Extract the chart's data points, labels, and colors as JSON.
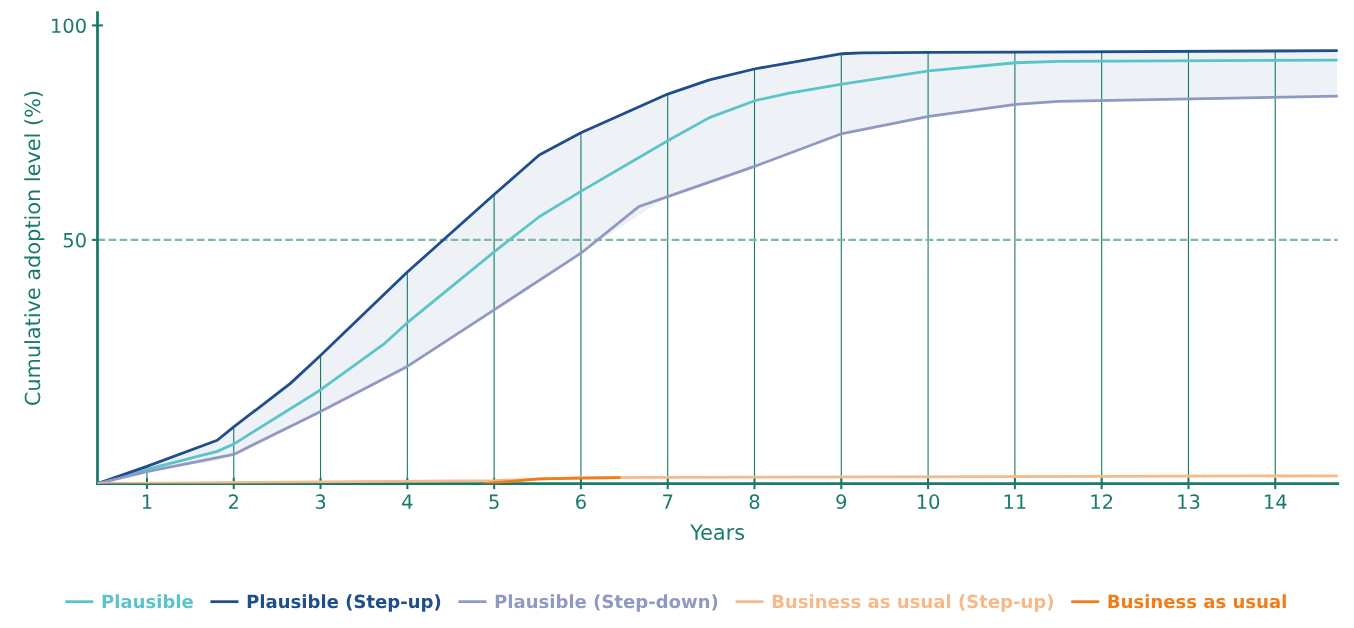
{
  "chart_data": {
    "type": "line",
    "xlabel": "Years",
    "ylabel": "Cumulative adoption level (%)",
    "xlim": [
      0.43,
      14.72
    ],
    "ylim": [
      -6.8,
      103
    ],
    "xticks": [
      1,
      2,
      3,
      4,
      5,
      6,
      7,
      8,
      9,
      10,
      11,
      12,
      13,
      14
    ],
    "yticks": [
      50,
      100
    ],
    "grid": "x",
    "legend": "bottom",
    "marker": "none",
    "line_style": "solid",
    "ref_lines": [
      {
        "axis": "y",
        "value": 50,
        "label": null,
        "color": "#7fb8a8",
        "line_style": "dashed"
      }
    ],
    "series": [
      {
        "name": "Plausible",
        "color": "#5bc4c8",
        "x": [
          0.43,
          1,
          1.81,
          2,
          2.99,
          3.74,
          4,
          5,
          5.52,
          6,
          7,
          7.48,
          8.01,
          8.4,
          9.01,
          10.01,
          11.01,
          11.5,
          14.71
        ],
        "values": [
          -6.8,
          -3.5,
          0.7,
          2.4,
          14.9,
          25.9,
          30.7,
          47.2,
          55.4,
          61.3,
          73.1,
          78.5,
          82.5,
          84.2,
          86.3,
          89.4,
          91.3,
          91.6,
          91.9
        ],
        "lower": [
          -6.8,
          -4.0,
          -1.5,
          0,
          9.9,
          17.8,
          20.5,
          33.7,
          40.6,
          46.9,
          60.1,
          63.5,
          67.2,
          70.0,
          74.8,
          78.8,
          81.6,
          82.3,
          83.5
        ],
        "upper": [
          -6.8,
          -2.8,
          3.3,
          6.4,
          22.9,
          37.5,
          42.5,
          60.6,
          69.8,
          75,
          84,
          87.3,
          89.9,
          91.3,
          93.4,
          93.7,
          93.8,
          93.9,
          94.1
        ]
      },
      {
        "name": "Plausible (Step-up)",
        "color": "#1f4e8c",
        "x": [
          0.43,
          1,
          1.81,
          2,
          2.65,
          2.99,
          4,
          5,
          5.52,
          6,
          7,
          7.48,
          8.01,
          9.01,
          9.23,
          10.01,
          11.01,
          14.71
        ],
        "values": [
          -6.8,
          -2.8,
          3.3,
          6.4,
          16.5,
          22.9,
          42.5,
          60.6,
          69.8,
          75,
          84,
          87.3,
          89.9,
          93.4,
          93.6,
          93.7,
          93.8,
          94.1
        ]
      },
      {
        "name": "Plausible (Step-down)",
        "color": "#8f99c2",
        "x": [
          0.43,
          1,
          2,
          2.99,
          4,
          5,
          6,
          6.67,
          7,
          8.01,
          9.01,
          10.01,
          11.01,
          11.5,
          14.71
        ],
        "values": [
          -6.8,
          -4.0,
          0,
          9.9,
          20.5,
          33.7,
          46.9,
          57.8,
          60.1,
          67.2,
          74.8,
          78.8,
          81.6,
          82.3,
          83.5
        ]
      },
      {
        "name": "Business as usual (Step-up)",
        "color": "#f5b98a",
        "x": [
          0.43,
          5,
          5.98,
          14.71
        ],
        "values": [
          -6.8,
          -6.1,
          -5.4,
          -5.0
        ]
      },
      {
        "name": "Business as usual",
        "color": "#f07d1a",
        "x": [
          4.89,
          5.52,
          6.44
        ],
        "values": [
          -6.8,
          -5.7,
          -5.4
        ]
      }
    ]
  }
}
